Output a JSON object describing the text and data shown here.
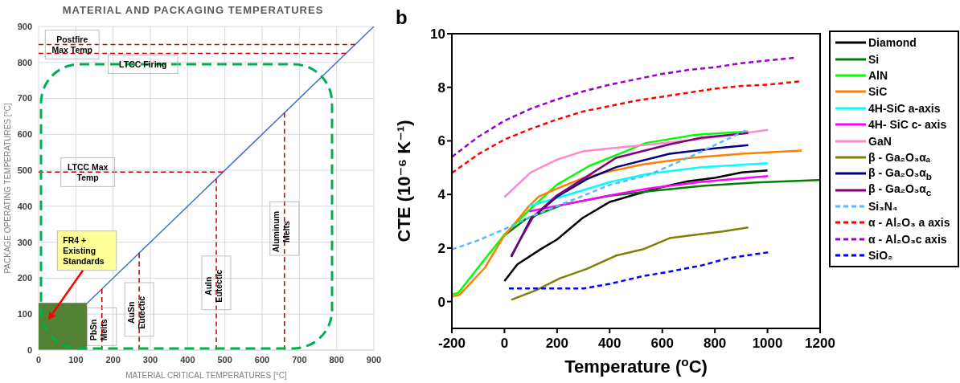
{
  "chart_data": [
    {
      "type": "line",
      "title": "MATERIAL AND PACKAGING TEMPERATURES",
      "xlabel": "MATERIAL CRITICAL TEMPERATURES [°C]",
      "ylabel": "PACKAGE OPERATING TEMPERATURES [°C]",
      "xlim": [
        0,
        900
      ],
      "ylim": [
        0,
        900
      ],
      "xticks": [
        0,
        100,
        200,
        300,
        400,
        500,
        600,
        700,
        800,
        900
      ],
      "yticks": [
        0,
        100,
        200,
        300,
        400,
        500,
        600,
        700,
        800,
        900
      ],
      "grid": true,
      "series": [
        {
          "type": "area",
          "color": "#548235",
          "x": [
            0,
            130
          ],
          "values": [
            130,
            130
          ]
        },
        {
          "color": "#4472c4",
          "x": [
            130,
            900
          ],
          "values": [
            130,
            900
          ]
        },
        {
          "color": "#c00000",
          "line_style": "dashed",
          "x": [
            0,
            850
          ],
          "values": [
            850,
            850
          ]
        },
        {
          "color": "#c00000",
          "line_style": "dashed",
          "x": [
            0,
            825
          ],
          "values": [
            825,
            825
          ]
        },
        {
          "color": "#c00000",
          "line_style": "dashed",
          "x": [
            0,
            495
          ],
          "values": [
            495,
            495
          ]
        },
        {
          "color": "#c00000",
          "line_style": "dashed",
          "x": [
            170,
            170
          ],
          "values": [
            0,
            170
          ]
        },
        {
          "color": "#c00000",
          "line_style": "dashed",
          "x": [
            270,
            270
          ],
          "values": [
            0,
            270
          ]
        },
        {
          "color": "#c00000",
          "line_style": "dashed",
          "x": [
            477,
            477
          ],
          "values": [
            0,
            477
          ]
        },
        {
          "color": "#c00000",
          "line_style": "dashed",
          "x": [
            660,
            660
          ],
          "values": [
            0,
            660
          ]
        }
      ],
      "annotations": [
        {
          "text": "Postfire Max Temp",
          "x": 90,
          "y": 850
        },
        {
          "text": "LTCC Firing",
          "x": 280,
          "y": 825
        },
        {
          "text": "LTCC Max Temp",
          "x": 132,
          "y": 495
        },
        "FR4 + Existing Standards",
        {
          "text": "PbSn Melts",
          "x": 170,
          "y": 65
        },
        {
          "text": "AuSn Eutectic",
          "x": 270,
          "y": 113
        },
        {
          "text": "AuIn Eutectic",
          "x": 477,
          "y": 187
        },
        {
          "text": "Aluminum Melts",
          "x": 660,
          "y": 338
        }
      ]
    },
    {
      "type": "line",
      "title": "b",
      "xlabel": "Temperature ($^{o}$C)",
      "ylabel": "CTE (10⁻⁶ K⁻¹)",
      "xlim": [
        -200,
        1200
      ],
      "xticks": [
        -200,
        0,
        200,
        400,
        600,
        800,
        1000,
        1200
      ],
      "ylim": [
        -1,
        10
      ],
      "yticks": [
        0,
        2,
        4,
        6,
        8,
        10
      ],
      "legend": "right",
      "series": [
        {
          "name": "Diamond",
          "color": "#000000",
          "x": [
            0,
            49,
            140,
            200,
            297,
            400,
            505,
            596,
            698,
            800,
            902,
            1000
          ],
          "values": [
            0.77,
            1.39,
            1.97,
            2.32,
            3.12,
            3.72,
            4.02,
            4.27,
            4.49,
            4.62,
            4.82,
            4.9
          ]
        },
        {
          "name": "Si",
          "color": "#008000",
          "x": [
            0,
            79,
            222,
            400,
            548,
            752,
            956,
            1200
          ],
          "values": [
            2.47,
            3.07,
            3.62,
            3.95,
            4.12,
            4.32,
            4.45,
            4.54
          ]
        },
        {
          "name": "AlN",
          "color": "#00ff00",
          "x": [
            -200,
            -176,
            -84,
            0,
            89,
            200,
            323,
            425,
            537,
            720,
            927
          ],
          "values": [
            0.27,
            0.32,
            1.47,
            2.5,
            3.37,
            4.37,
            5.07,
            5.47,
            5.92,
            6.22,
            6.35
          ]
        },
        {
          "name": "SiC",
          "color": "#ff8000",
          "x": [
            -200,
            -171,
            -74,
            -7,
            89,
            130,
            200,
            302,
            404,
            526,
            710,
            902,
            1131
          ],
          "values": [
            0.19,
            0.25,
            1.27,
            2.37,
            3.52,
            3.92,
            4.22,
            4.62,
            4.87,
            5.12,
            5.37,
            5.52,
            5.64
          ]
        },
        {
          "name": "4H-SiC a-axis",
          "color": "#00ffff",
          "x": [
            94,
            200,
            302,
            404,
            546,
            749,
            1002
          ],
          "values": [
            3.57,
            3.87,
            4.17,
            4.47,
            4.77,
            5.02,
            5.17
          ]
        },
        {
          "name": "4H- SiC c- axis",
          "color": "#ff00ff",
          "x": [
            94,
            222,
            404,
            546,
            749,
            1002
          ],
          "values": [
            3.37,
            3.62,
            3.97,
            4.22,
            4.47,
            4.69
          ]
        },
        {
          "name": "GaN",
          "color": "#ff88cc",
          "x": [
            0,
            99,
            200,
            302,
            505,
            749,
            1002
          ],
          "values": [
            3.9,
            4.82,
            5.3,
            5.62,
            5.82,
            6.07,
            6.41
          ]
        },
        {
          "name": "β - Ga₂O₃αₐ",
          "color": "#808000",
          "x": [
            26,
            119,
            211,
            313,
            425,
            526,
            628,
            749,
            830,
            927
          ],
          "values": [
            0.07,
            0.42,
            0.87,
            1.22,
            1.72,
            1.95,
            2.37,
            2.52,
            2.62,
            2.77
          ]
        },
        {
          "name": "β - Ga₂O₃α$_{b}$",
          "color": "#000080",
          "x": [
            26,
            99,
            200,
            313,
            425,
            628,
            800,
            927
          ],
          "values": [
            1.67,
            3.07,
            3.92,
            4.57,
            5.02,
            5.52,
            5.72,
            5.84
          ]
        },
        {
          "name": "β - Ga₂O₃α$_{c}$",
          "color": "#800080",
          "x": [
            26,
            109,
            200,
            313,
            425,
            628,
            749,
            927
          ],
          "values": [
            1.72,
            3.17,
            3.97,
            4.67,
            5.37,
            5.87,
            6.12,
            6.29
          ]
        },
        {
          "name": "Si₃N₄",
          "color": "#55bbff",
          "line_style": "dashed",
          "x": [
            -200,
            -104,
            -3,
            99,
            222,
            404,
            546,
            698,
            917
          ],
          "values": [
            1.95,
            2.27,
            2.69,
            3.17,
            3.65,
            4.37,
            4.72,
            5.37,
            6.39
          ]
        },
        {
          "name": "α - Al₂O₃ a axis",
          "color": "#ff0000",
          "line_style": "dashed",
          "x": [
            -200,
            -100,
            0,
            100,
            200,
            300,
            400,
            500,
            600,
            700,
            800,
            900,
            1000,
            1120
          ],
          "values": [
            4.8,
            5.5,
            6.05,
            6.45,
            6.8,
            7.1,
            7.3,
            7.5,
            7.65,
            7.8,
            7.95,
            8.05,
            8.1,
            8.22
          ]
        },
        {
          "name": "α - Al₂O₃c axis",
          "color": "#9900cc",
          "line_style": "dashed",
          "x": [
            -200,
            -100,
            0,
            100,
            200,
            300,
            400,
            500,
            600,
            700,
            800,
            900,
            1000,
            1100
          ],
          "values": [
            5.4,
            6.15,
            6.75,
            7.2,
            7.55,
            7.85,
            8.1,
            8.3,
            8.5,
            8.65,
            8.75,
            8.9,
            9.0,
            9.1
          ]
        },
        {
          "name": "SiO₂",
          "color": "#0000ff",
          "line_style": "dashed",
          "x": [
            17,
            302,
            404,
            526,
            628,
            749,
            851,
            1002
          ],
          "values": [
            0.49,
            0.49,
            0.67,
            0.95,
            1.12,
            1.35,
            1.62,
            1.84
          ]
        }
      ]
    }
  ]
}
